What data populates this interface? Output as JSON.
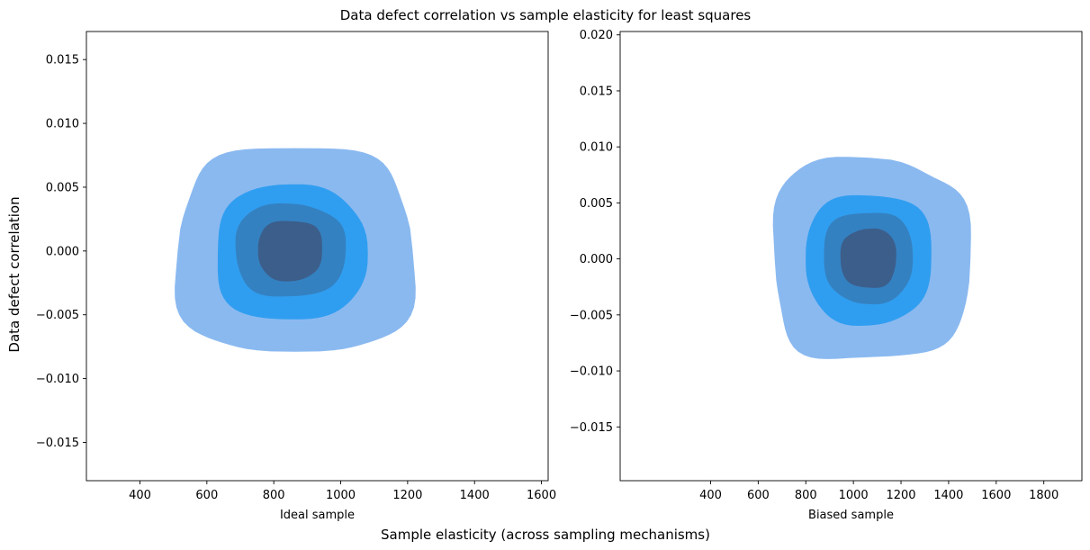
{
  "figure": {
    "title": "Data defect correlation vs sample elasticity for least squares",
    "supxlabel": "Sample elasticity (across sampling mechanisms)",
    "supylabel": "Data defect correlation"
  },
  "chart_data": [
    {
      "type": "kde_contour",
      "xlabel": "Ideal sample",
      "ylabel": "",
      "xlim": [
        240,
        1620
      ],
      "ylim": [
        -0.018,
        0.0172
      ],
      "xticks": [
        400,
        600,
        800,
        1000,
        1200,
        1400,
        1600
      ],
      "yticks": [
        -0.015,
        -0.01,
        -0.005,
        0.0,
        0.005,
        0.01,
        0.015
      ],
      "ytick_labels": [
        "−0.015",
        "−0.010",
        "−0.005",
        "0.000",
        "0.005",
        "0.010",
        "0.015"
      ],
      "grid": false,
      "levels": [
        {
          "level": 1,
          "color": "#8ab9f0",
          "x_range": [
            518,
            1210
          ],
          "y_range": [
            -0.0081,
            0.0081
          ],
          "center": [
            860,
            0.0
          ]
        },
        {
          "level": 2,
          "color": "#309ef0",
          "x_range": [
            624,
            1076
          ],
          "y_range": [
            -0.0054,
            0.0051
          ],
          "center": [
            850,
            -0.0002
          ]
        },
        {
          "level": 3,
          "color": "#3481c1",
          "x_range": [
            685,
            1012
          ],
          "y_range": [
            -0.0036,
            0.0037
          ],
          "center": [
            848,
            0.0
          ]
        },
        {
          "level": 4,
          "color": "#3c5e8b",
          "x_range": [
            753,
            945
          ],
          "y_range": [
            -0.0023,
            0.0024
          ],
          "center": [
            849,
            0.0
          ]
        }
      ]
    },
    {
      "type": "kde_contour",
      "xlabel": "Biased sample",
      "ylabel": "",
      "xlim": [
        20,
        1960
      ],
      "ylim": [
        -0.0198,
        0.0203
      ],
      "xticks": [
        400,
        600,
        800,
        1000,
        1200,
        1400,
        1600,
        1800
      ],
      "yticks": [
        -0.015,
        -0.01,
        -0.005,
        0.0,
        0.005,
        0.01,
        0.015,
        0.02
      ],
      "ytick_labels": [
        "−0.015",
        "−0.010",
        "−0.005",
        "0.000",
        "0.005",
        "0.010",
        "0.015",
        "0.020"
      ],
      "grid": false,
      "levels": [
        {
          "level": 1,
          "color": "#8ab9f0",
          "x_range": [
            660,
            1478
          ],
          "y_range": [
            -0.009,
            0.0089
          ],
          "center": [
            1085,
            0.0
          ]
        },
        {
          "level": 2,
          "color": "#309ef0",
          "x_range": [
            800,
            1328
          ],
          "y_range": [
            -0.0058,
            0.0058
          ],
          "center": [
            1070,
            0.0
          ]
        },
        {
          "level": 3,
          "color": "#3481c1",
          "x_range": [
            875,
            1250
          ],
          "y_range": [
            -0.0039,
            0.0042
          ],
          "center": [
            1062,
            0.0
          ]
        },
        {
          "level": 4,
          "color": "#3c5e8b",
          "x_range": [
            948,
            1180
          ],
          "y_range": [
            -0.0026,
            0.0027
          ],
          "center": [
            1062,
            0.0
          ]
        }
      ]
    }
  ]
}
